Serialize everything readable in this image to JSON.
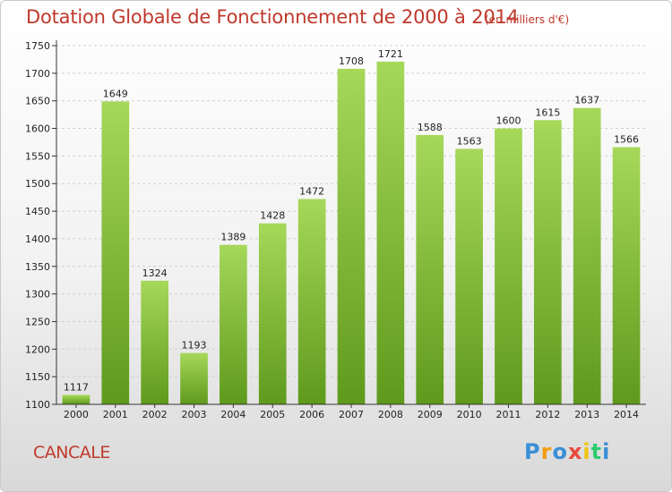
{
  "title": "Dotation Globale de Fonctionnement de 2000 à 2014",
  "units": "(en milliers d'€)",
  "city": "CANCALE",
  "logo": {
    "letters": [
      "P",
      "r",
      "o",
      "x",
      "i",
      "t",
      "i"
    ],
    "colors": [
      "#3a8fd6",
      "#f39c12",
      "#3a8fd6",
      "#e74c3c",
      "#f1c40f",
      "#2ecc71",
      "#3a8fd6"
    ]
  },
  "colors": {
    "bar": "#7cb82f",
    "bar_light": "#a6d85a",
    "bar_dark": "#5f9a1c",
    "text": "#c0392b",
    "axis": "#333333"
  },
  "chart_data": {
    "type": "bar",
    "categories": [
      "2000",
      "2001",
      "2002",
      "2003",
      "2004",
      "2005",
      "2006",
      "2007",
      "2008",
      "2009",
      "2010",
      "2011",
      "2012",
      "2013",
      "2014"
    ],
    "values": [
      1117,
      1649,
      1324,
      1193,
      1389,
      1428,
      1472,
      1708,
      1721,
      1588,
      1563,
      1600,
      1615,
      1637,
      1566
    ],
    "ylim": [
      1100,
      1750
    ],
    "yticks": [
      1100,
      1150,
      1200,
      1250,
      1300,
      1350,
      1400,
      1450,
      1500,
      1550,
      1600,
      1650,
      1700,
      1750
    ],
    "grid": true,
    "data_labels": true
  }
}
